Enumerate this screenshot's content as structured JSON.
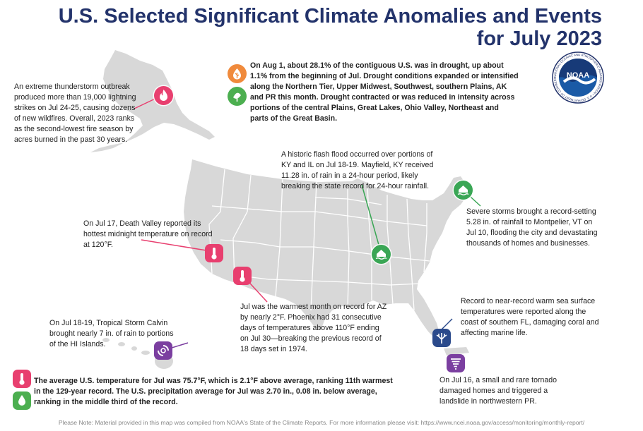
{
  "title": {
    "line1": "U.S. Selected Significant Climate Anomalies and Events",
    "line2": "for July 2023"
  },
  "drought_note": "On Aug 1, about 28.1% of the contiguous U.S. was in drought, up about 1.1% from the beginning of Jul. Drought conditions expanded or intensified along the Northern Tier, Upper Midwest, Southwest, southern Plains, AK and PR this month. Drought contracted or was reduced in intensity across portions of the central Plains, Great Lakes, Ohio Valley, Northeast and parts of the Great Basin.",
  "alaska_note": "An extreme thunderstorm outbreak produced more than 19,000 lightning strikes on Jul 24-25, causing dozens of new wildfires. Overall, 2023 ranks as the second-lowest fire season by acres burned in the past 30 years.",
  "flood_ky_note": "A historic flash flood occurred over portions of KY and IL on Jul 18-19. Mayfield, KY received 11.28 in. of rain in a 24-hour period, likely breaking the state record for 24-hour rainfall.",
  "vermont_note": "Severe storms brought a record-setting 5.28 in. of rainfall to Montpelier, VT on Jul 10, flooding the city and devastating thousands of homes and businesses.",
  "death_valley_note": "On Jul 17, Death Valley reported its hottest midnight temperature on record at 120°F.",
  "arizona_note": "Jul was the warmest month on record for AZ by nearly 2°F. Phoenix had 31 consecutive days of temperatures above 110°F ending on Jul 30—breaking the previous record of 18 days set in 1974.",
  "florida_note": "Record to near-record warm sea surface temperatures were reported along the coast of southern FL, damaging coral and affecting marine life.",
  "hawaii_note": "On Jul 18-19, Tropical Storm Calvin brought nearly 7 in. of rain to portions of the HI Islands.",
  "pr_note": "On Jul 16, a small and rare tornado damaged homes and triggered a landslide in northwestern PR.",
  "national_note": "The average U.S. temperature for Jul was 75.7°F, which is 2.1°F above average, ranking 11th warmest in the 129-year record. The U.S. precipitation average for Jul was 2.70 in., 0.08 in. below average, ranking in the middle third of the record.",
  "logo": {
    "text": "NOAA",
    "ring": "NATIONAL OCEANIC AND ATMOSPHERIC ADMINISTRATION • U.S. DEPARTMENT OF COMMERCE"
  },
  "footer": "Please Note: Material provided in this map was compiled from NOAA's State of the Climate Reports. For more information please visit: https://www.ncei.noaa.gov/access/monitoring/monthly-report/",
  "icons": {
    "wildfire": "flame-icon",
    "drought": "drought-icon",
    "flood": "house-flood-icon",
    "heat": "thermometer-icon",
    "marine": "coral-icon",
    "tropical": "hurricane-icon",
    "tornado": "tornado-icon",
    "precip": "droplet-icon"
  },
  "colors": {
    "title": "#23336b",
    "wildfire": "#e83f6f",
    "drought_orange": "#f08a3c",
    "drought_green": "#4caf50",
    "flood": "#3aa655",
    "heat": "#e83f6f",
    "marine": "#2b4a8b",
    "tropical": "#7b3fa0",
    "tornado": "#7b3fa0",
    "land": "#d8d8d8",
    "borders": "#ffffff"
  }
}
